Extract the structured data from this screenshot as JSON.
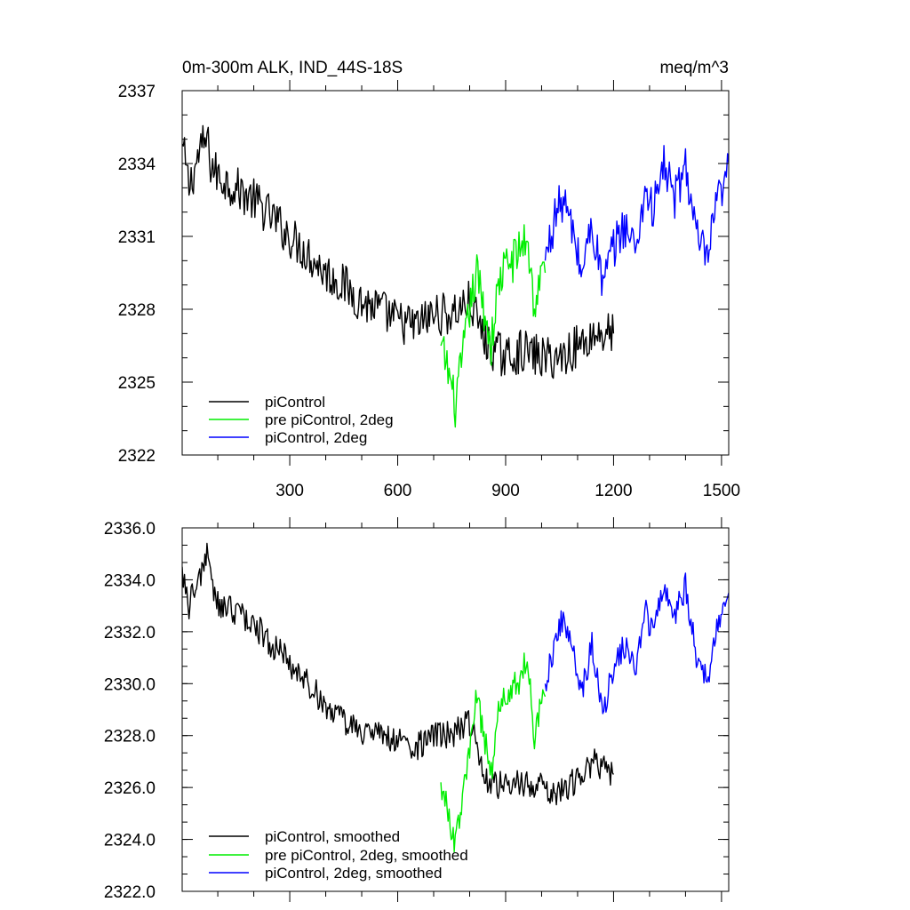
{
  "colors": {
    "piControl": "#000000",
    "pre_piControl_2deg": "#00ee00",
    "piControl_2deg": "#0000ff"
  },
  "chart_data": [
    {
      "type": "line",
      "title": "0m-300m ALK, IND_44S-18S",
      "units": "meq/m^3",
      "xlim": [
        1,
        1520
      ],
      "ylim": [
        2322,
        2337
      ],
      "x_ticks": [
        300,
        600,
        900,
        1200,
        1500
      ],
      "x_tick_labels": [
        "300",
        "600",
        "900",
        "1200",
        "1500"
      ],
      "y_ticks": [
        2322,
        2325,
        2328,
        2331,
        2334,
        2337
      ],
      "y_tick_labels": [
        "2322",
        "2325",
        "2328",
        "2331",
        "2334",
        "2337"
      ],
      "legend": [
        "piControl",
        "pre piControl, 2deg",
        "piControl, 2deg"
      ],
      "series": [
        {
          "name": "piControl",
          "color": "#000000",
          "x": [
            1,
            20,
            50,
            70,
            80,
            100,
            150,
            200,
            250,
            300,
            350,
            400,
            450,
            500,
            550,
            600,
            650,
            700,
            750,
            800,
            850,
            900,
            950,
            1000,
            1050,
            1100,
            1150,
            1200
          ],
          "y": [
            2334.8,
            2333.0,
            2334.5,
            2335.0,
            2334.0,
            2333.5,
            2333.0,
            2332.5,
            2331.8,
            2331.0,
            2330.3,
            2329.5,
            2329.0,
            2328.3,
            2328.0,
            2327.5,
            2327.3,
            2327.8,
            2327.8,
            2328.3,
            2326.5,
            2326.0,
            2326.3,
            2326.0,
            2326.0,
            2326.5,
            2327.0,
            2327.0
          ]
        },
        {
          "name": "pre piControl, 2deg",
          "color": "#00ee00",
          "x": [
            720,
            740,
            760,
            780,
            800,
            820,
            840,
            860,
            880,
            900,
            920,
            940,
            960,
            980,
            1000,
            1010
          ],
          "y": [
            2326.5,
            2325.5,
            2324.0,
            2326.0,
            2328.0,
            2329.5,
            2328.0,
            2326.5,
            2329.0,
            2329.8,
            2330.0,
            2330.5,
            2331.0,
            2328.0,
            2329.5,
            2329.5
          ]
        },
        {
          "name": "piControl, 2deg",
          "color": "#0000ff",
          "x": [
            1010,
            1040,
            1060,
            1090,
            1110,
            1140,
            1170,
            1200,
            1230,
            1260,
            1290,
            1310,
            1340,
            1370,
            1400,
            1430,
            1460,
            1490,
            1510,
            1520
          ],
          "y": [
            2330.0,
            2332.0,
            2332.5,
            2331.0,
            2329.5,
            2331.5,
            2329.0,
            2330.5,
            2331.5,
            2330.5,
            2333.0,
            2332.0,
            2334.0,
            2332.5,
            2334.0,
            2331.0,
            2330.0,
            2332.5,
            2333.0,
            2334.0
          ]
        }
      ]
    },
    {
      "type": "line",
      "title": "",
      "xlim": [
        1,
        1520
      ],
      "ylim": [
        2322,
        2336
      ],
      "x_ticks": [
        300,
        600,
        900,
        1200,
        1500
      ],
      "y_ticks": [
        2322,
        2324,
        2326,
        2328,
        2330,
        2332,
        2334,
        2336
      ],
      "y_tick_labels": [
        "2322.0",
        "2324.0",
        "2326.0",
        "2328.0",
        "2330.0",
        "2332.0",
        "2334.0",
        "2336.0"
      ],
      "legend": [
        "piControl, smoothed",
        "pre piControl, 2deg, smoothed",
        "piControl, 2deg, smoothed"
      ],
      "series": [
        {
          "name": "piControl, smoothed",
          "color": "#000000",
          "x": [
            1,
            20,
            50,
            70,
            80,
            100,
            150,
            200,
            250,
            300,
            350,
            400,
            450,
            500,
            550,
            600,
            650,
            700,
            750,
            800,
            850,
            900,
            950,
            1000,
            1050,
            1100,
            1150,
            1200
          ],
          "y": [
            2334.5,
            2333.0,
            2334.2,
            2335.0,
            2334.0,
            2333.0,
            2332.8,
            2332.3,
            2331.5,
            2330.8,
            2330.0,
            2329.2,
            2328.5,
            2328.2,
            2328.0,
            2327.8,
            2327.5,
            2328.0,
            2328.0,
            2328.5,
            2326.3,
            2326.0,
            2326.2,
            2326.0,
            2325.8,
            2326.3,
            2327.0,
            2326.5
          ]
        },
        {
          "name": "pre piControl, 2deg, smoothed",
          "color": "#00ee00",
          "x": [
            720,
            740,
            760,
            780,
            800,
            820,
            840,
            860,
            880,
            900,
            920,
            940,
            960,
            980,
            1000,
            1010
          ],
          "y": [
            2326.2,
            2325.0,
            2323.8,
            2325.5,
            2327.5,
            2329.5,
            2328.0,
            2326.5,
            2329.0,
            2329.5,
            2329.8,
            2330.2,
            2331.0,
            2328.0,
            2329.5,
            2329.5
          ]
        },
        {
          "name": "piControl, 2deg, smoothed",
          "color": "#0000ff",
          "x": [
            1010,
            1040,
            1060,
            1090,
            1110,
            1140,
            1170,
            1200,
            1230,
            1260,
            1290,
            1310,
            1340,
            1370,
            1400,
            1430,
            1460,
            1490,
            1510,
            1520
          ],
          "y": [
            2330.0,
            2331.8,
            2332.5,
            2331.0,
            2329.5,
            2331.5,
            2329.0,
            2330.5,
            2331.5,
            2330.5,
            2332.8,
            2331.8,
            2334.0,
            2332.5,
            2333.8,
            2331.0,
            2330.0,
            2332.5,
            2333.0,
            2333.5
          ]
        }
      ]
    }
  ]
}
